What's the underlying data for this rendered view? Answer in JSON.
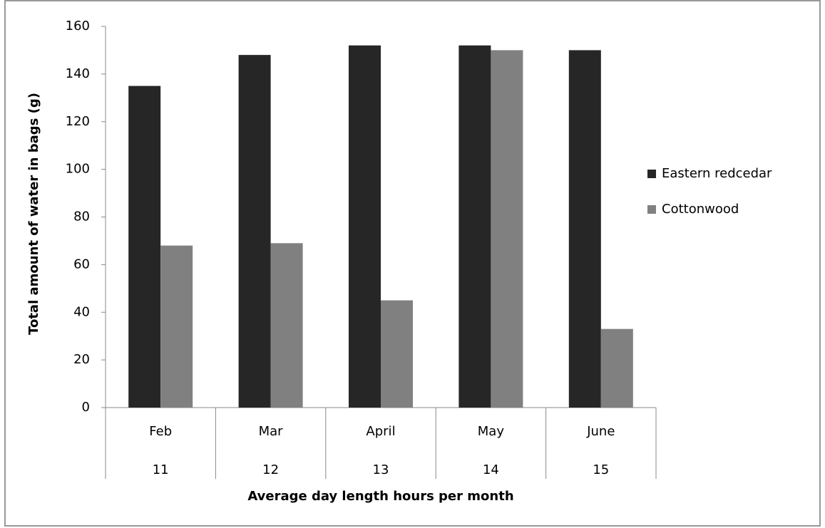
{
  "chart_data": {
    "type": "bar",
    "y_label": "Total amount of water in bags (g)",
    "x_label": "Average day length hours per month",
    "categories": [
      "Feb",
      "Mar",
      "April",
      "May",
      "June"
    ],
    "day_length_hours": [
      11,
      12,
      13,
      14,
      15
    ],
    "series": [
      {
        "name": "Eastern redcedar",
        "color": "#262626",
        "values": [
          135,
          148,
          152,
          152,
          150
        ]
      },
      {
        "name": "Cottonwood",
        "color": "#808080",
        "values": [
          68,
          69,
          45,
          150,
          33
        ]
      }
    ],
    "ylim": [
      0,
      160
    ],
    "yticks": [
      0,
      20,
      40,
      60,
      80,
      100,
      120,
      140,
      160
    ],
    "legend": "right"
  }
}
